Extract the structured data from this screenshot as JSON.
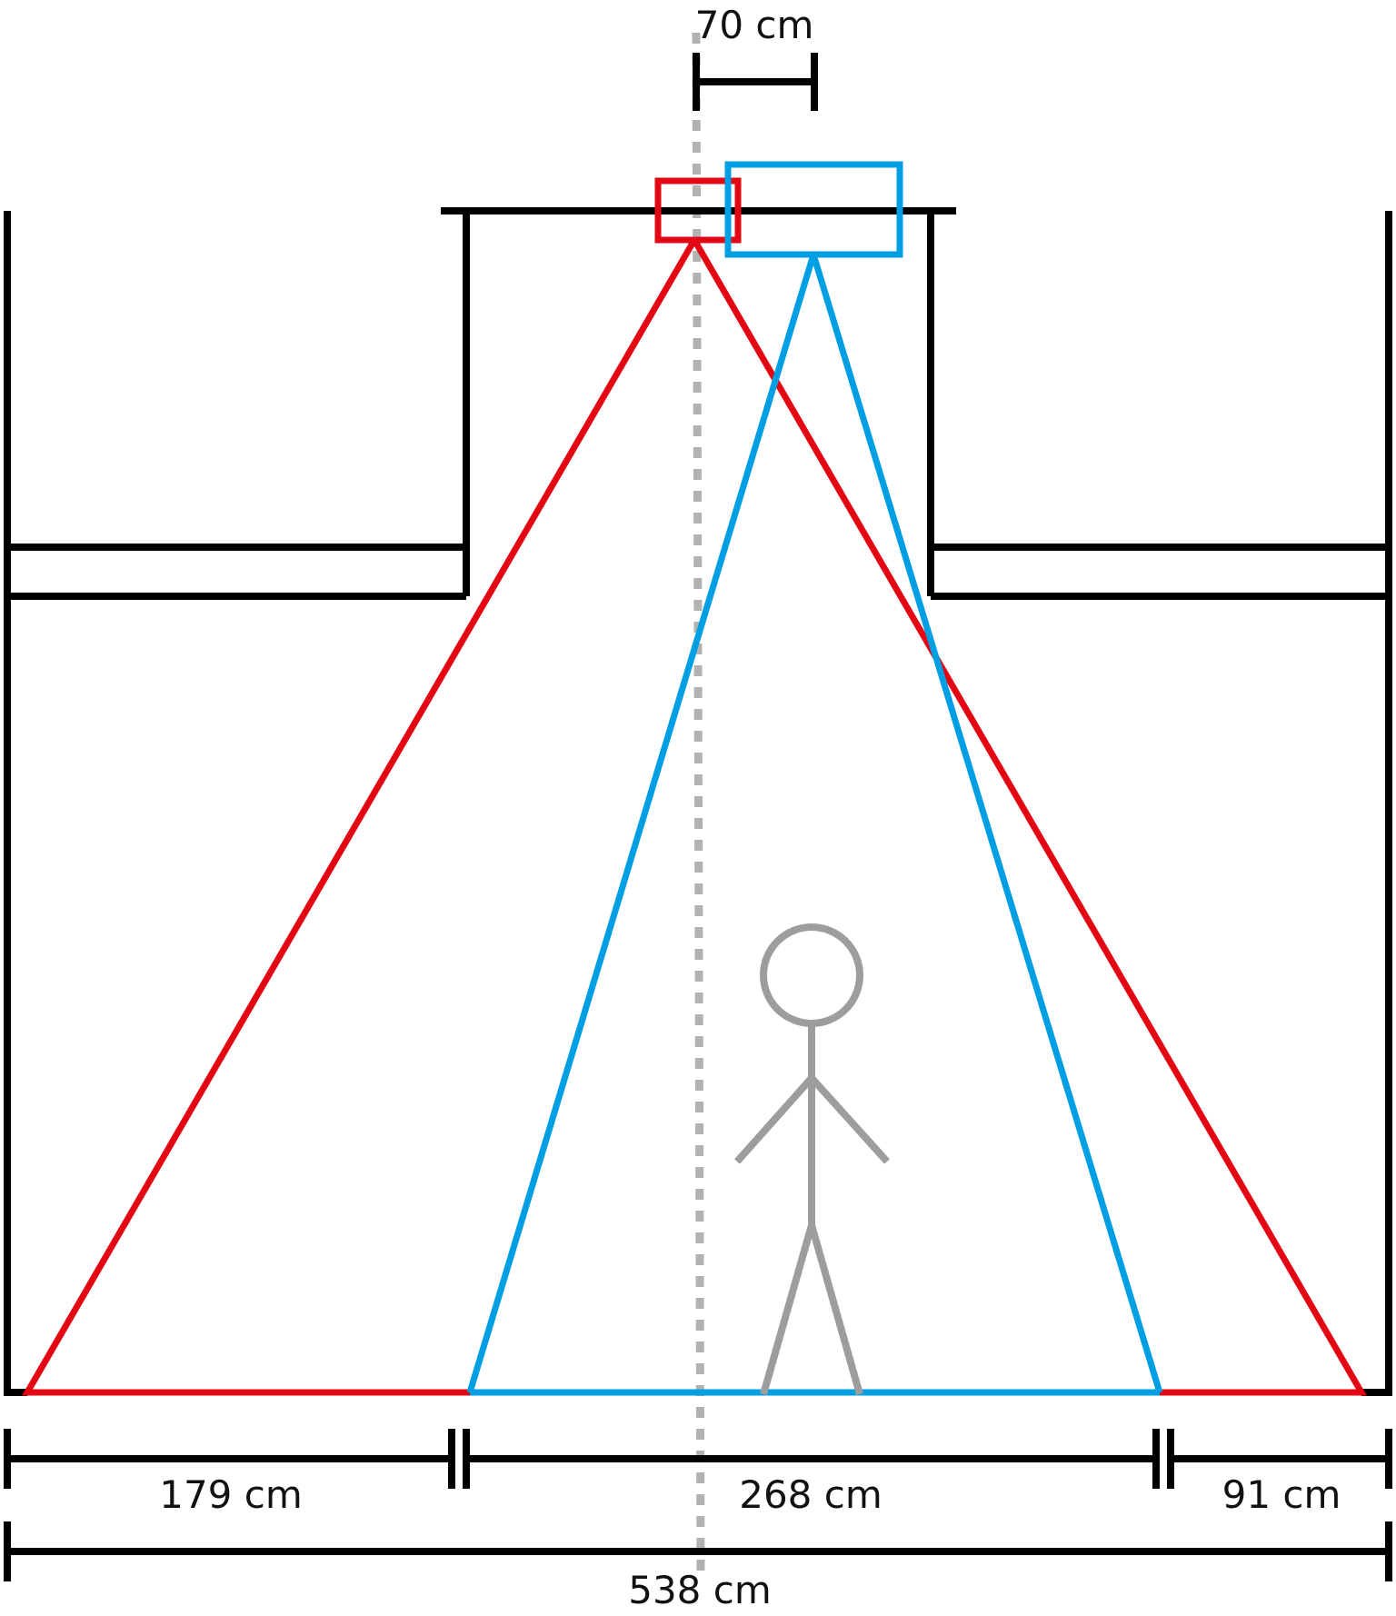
{
  "colors": {
    "structure": "#000000",
    "red_view": "#e30613",
    "blue_view": "#009fe3",
    "figure": "#9d9d9d",
    "center_line": "#b2b2b2"
  },
  "labels": {
    "top_offset": "70 cm",
    "left_width": "179 cm",
    "middle_width": "268 cm",
    "right_width": "91 cm",
    "total_width": "538 cm"
  },
  "icons": {
    "person": "stick-figure-icon"
  }
}
